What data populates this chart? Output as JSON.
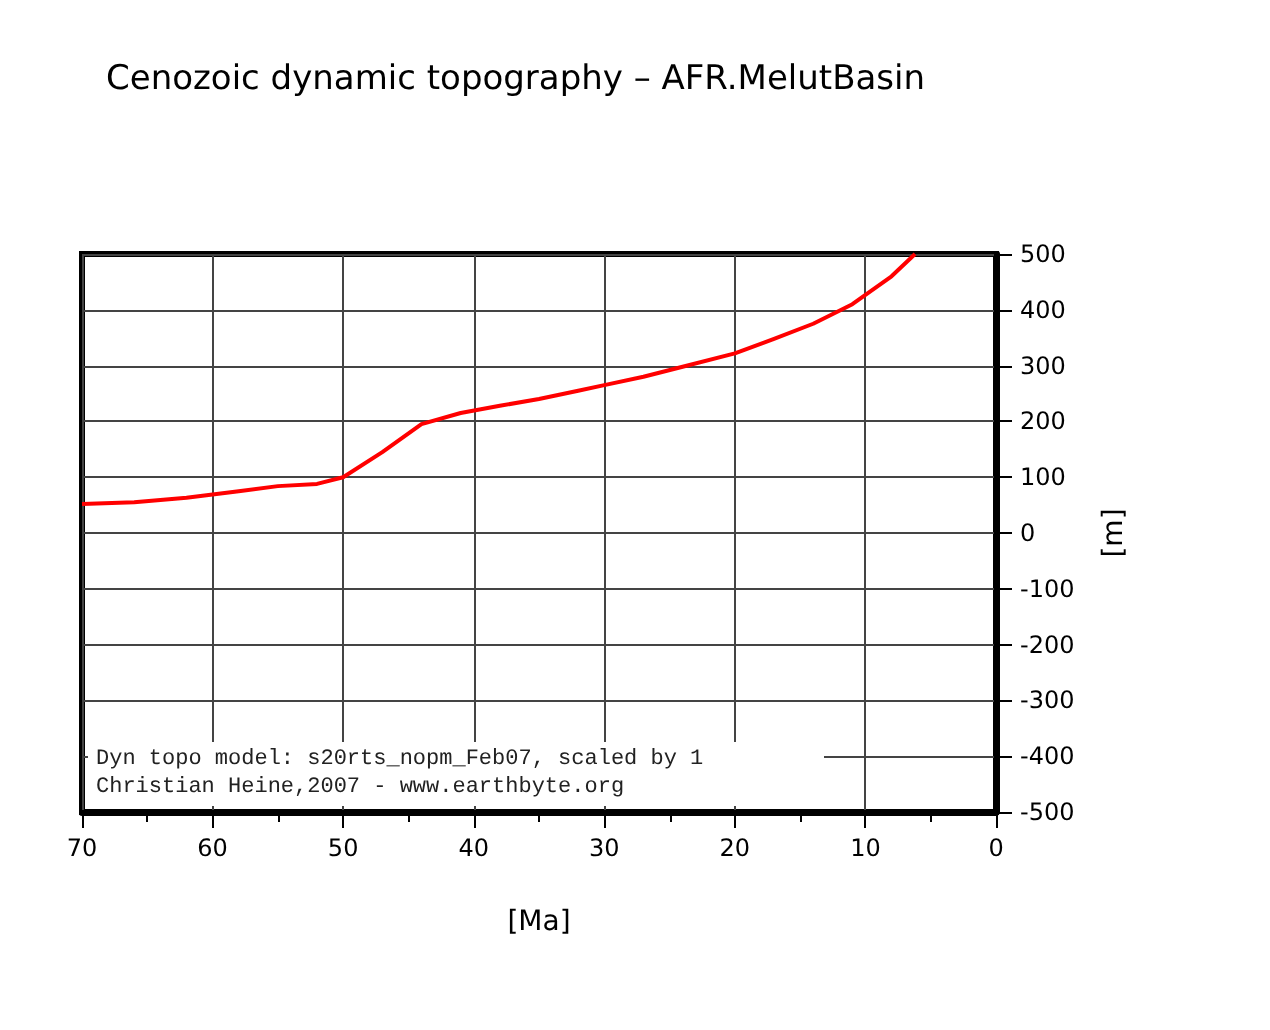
{
  "chart_data": {
    "type": "line",
    "title": "Cenozoic dynamic topography – AFR.MelutBasin",
    "xlabel": "[Ma]",
    "ylabel": "[m]",
    "x": [
      70,
      66,
      62,
      58,
      55,
      52,
      50,
      47,
      44,
      41,
      38,
      35,
      32,
      30,
      27,
      24,
      20,
      17,
      14,
      11,
      8,
      6.2
    ],
    "series": [
      {
        "color": "#ff0000",
        "values": [
          52,
          55,
          63,
          75,
          84,
          88,
          100,
          145,
          195,
          215,
          228,
          240,
          255,
          265,
          280,
          298,
          322,
          348,
          375,
          410,
          460,
          500
        ]
      }
    ],
    "xlim": [
      70,
      0
    ],
    "xticks": [
      70,
      60,
      50,
      40,
      30,
      20,
      10,
      0
    ],
    "ylim": [
      -500,
      500
    ],
    "yticks": [
      -500,
      -400,
      -300,
      -200,
      -100,
      0,
      100,
      200,
      300,
      400,
      500
    ],
    "grid": true,
    "marker": "none",
    "line_style": "solid",
    "annotations": [
      "Dyn topo model: s20rts_nopm_Feb07, scaled by 1",
      "Christian Heine,2007 - www.earthbyte.org"
    ]
  }
}
